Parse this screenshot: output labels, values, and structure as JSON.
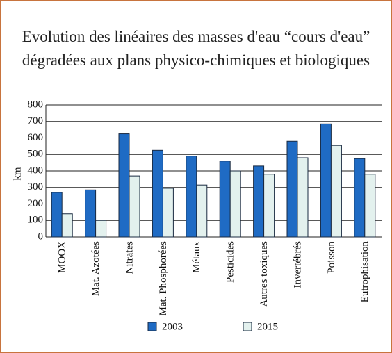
{
  "chart_data": {
    "type": "bar",
    "title": "Evolution des linéaires des masses d'eau “cours d'eau” dégradées aux plans physico-chimiques et biologiques",
    "ylabel": "km",
    "categories": [
      "MOOX",
      "Mat. Azotées",
      "Nitrates",
      "Mat. Phosphorées",
      "Métaux",
      "Pesticides",
      "Autres toxiques",
      "Invertébrés",
      "Poisson",
      "Eutrophisation"
    ],
    "series": [
      {
        "name": "2003",
        "color": "#1f6bc4",
        "values": [
          270,
          285,
          625,
          525,
          490,
          460,
          430,
          580,
          685,
          475
        ]
      },
      {
        "name": "2015",
        "color": "#e3f1ee",
        "values": [
          140,
          100,
          370,
          295,
          315,
          400,
          380,
          480,
          555,
          380
        ]
      }
    ],
    "ylim": [
      0,
      800
    ],
    "yticks": [
      0,
      100,
      200,
      300,
      400,
      500,
      600,
      700,
      800
    ],
    "grid": true
  }
}
